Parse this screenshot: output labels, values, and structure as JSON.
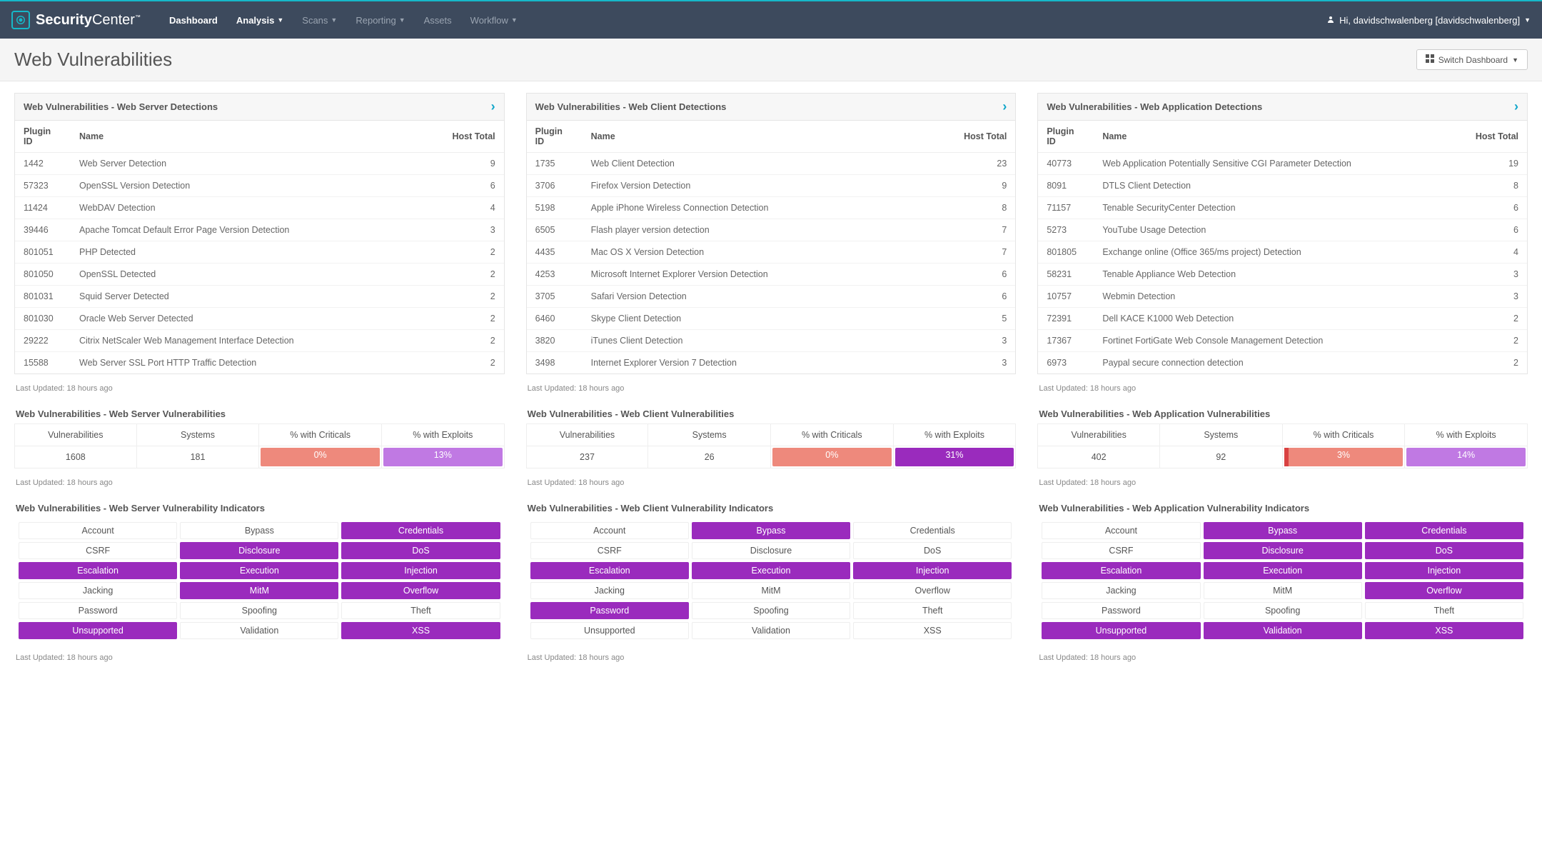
{
  "brand": {
    "text1": "Security",
    "text2": "Center"
  },
  "nav": {
    "dashboard": "Dashboard",
    "analysis": "Analysis",
    "scans": "Scans",
    "reporting": "Reporting",
    "assets": "Assets",
    "workflow": "Workflow"
  },
  "user": {
    "greet": "Hi, davidschwalenberg [davidschwalenberg]"
  },
  "page": {
    "title": "Web Vulnerabilities",
    "switch": "Switch Dashboard"
  },
  "headers": {
    "plugin": "Plugin ID",
    "name": "Name",
    "host": "Host Total",
    "vuln": "Vulnerabilities",
    "sys": "Systems",
    "crit": "% with Criticals",
    "exp": "% with Exploits"
  },
  "updated": "Last Updated: 18 hours ago",
  "colors": {
    "purple": "#9a2bbd",
    "salmon": "#ee897c",
    "salmon_alt": "#e97c72",
    "violet": "#c079e3"
  },
  "columns": [
    {
      "det_title": "Web Vulnerabilities - Web Server Detections",
      "det_rows": [
        {
          "id": "1442",
          "name": "Web Server Detection",
          "total": "9"
        },
        {
          "id": "57323",
          "name": "OpenSSL Version Detection",
          "total": "6"
        },
        {
          "id": "11424",
          "name": "WebDAV Detection",
          "total": "4"
        },
        {
          "id": "39446",
          "name": "Apache Tomcat Default Error Page Version Detection",
          "total": "3"
        },
        {
          "id": "801051",
          "name": "PHP Detected",
          "total": "2"
        },
        {
          "id": "801050",
          "name": "OpenSSL Detected",
          "total": "2"
        },
        {
          "id": "801031",
          "name": "Squid Server Detected",
          "total": "2"
        },
        {
          "id": "801030",
          "name": "Oracle Web Server Detected",
          "total": "2"
        },
        {
          "id": "29222",
          "name": "Citrix NetScaler Web Management Interface Detection",
          "total": "2"
        },
        {
          "id": "15588",
          "name": "Web Server SSL Port HTTP Traffic Detection",
          "total": "2"
        }
      ],
      "vuln_title": "Web Vulnerabilities - Web Server Vulnerabilities",
      "vuln": {
        "vulns": "1608",
        "sys": "181",
        "crit": "0%",
        "crit_color": "#ee897c",
        "crit_w": 100,
        "exp": "13%",
        "exp_color": "#c079e3",
        "exp_w": 100
      },
      "ind_title": "Web Vulnerabilities - Web Server Vulnerability Indicators",
      "indicators": [
        {
          "l": "Account",
          "on": 0
        },
        {
          "l": "Bypass",
          "on": 0
        },
        {
          "l": "Credentials",
          "on": 1
        },
        {
          "l": "CSRF",
          "on": 0
        },
        {
          "l": "Disclosure",
          "on": 1
        },
        {
          "l": "DoS",
          "on": 1
        },
        {
          "l": "Escalation",
          "on": 1
        },
        {
          "l": "Execution",
          "on": 1
        },
        {
          "l": "Injection",
          "on": 1
        },
        {
          "l": "Jacking",
          "on": 0
        },
        {
          "l": "MitM",
          "on": 1
        },
        {
          "l": "Overflow",
          "on": 1
        },
        {
          "l": "Password",
          "on": 0
        },
        {
          "l": "Spoofing",
          "on": 0
        },
        {
          "l": "Theft",
          "on": 0
        },
        {
          "l": "Unsupported",
          "on": 1
        },
        {
          "l": "Validation",
          "on": 0
        },
        {
          "l": "XSS",
          "on": 1
        }
      ]
    },
    {
      "det_title": "Web Vulnerabilities - Web Client Detections",
      "det_rows": [
        {
          "id": "1735",
          "name": "Web Client Detection",
          "total": "23"
        },
        {
          "id": "3706",
          "name": "Firefox Version Detection",
          "total": "9"
        },
        {
          "id": "5198",
          "name": "Apple iPhone Wireless Connection Detection",
          "total": "8"
        },
        {
          "id": "6505",
          "name": "Flash player version detection",
          "total": "7"
        },
        {
          "id": "4435",
          "name": "Mac OS X Version Detection",
          "total": "7"
        },
        {
          "id": "4253",
          "name": "Microsoft Internet Explorer Version Detection",
          "total": "6"
        },
        {
          "id": "3705",
          "name": "Safari Version Detection",
          "total": "6"
        },
        {
          "id": "6460",
          "name": "Skype Client Detection",
          "total": "5"
        },
        {
          "id": "3820",
          "name": "iTunes Client Detection",
          "total": "3"
        },
        {
          "id": "3498",
          "name": "Internet Explorer Version 7 Detection",
          "total": "3"
        }
      ],
      "vuln_title": "Web Vulnerabilities - Web Client Vulnerabilities",
      "vuln": {
        "vulns": "237",
        "sys": "26",
        "crit": "0%",
        "crit_color": "#ee897c",
        "crit_w": 100,
        "exp": "31%",
        "exp_color": "#9a2bbd",
        "exp_w": 100
      },
      "ind_title": "Web Vulnerabilities - Web Client Vulnerability Indicators",
      "indicators": [
        {
          "l": "Account",
          "on": 0
        },
        {
          "l": "Bypass",
          "on": 1
        },
        {
          "l": "Credentials",
          "on": 0
        },
        {
          "l": "CSRF",
          "on": 0
        },
        {
          "l": "Disclosure",
          "on": 0
        },
        {
          "l": "DoS",
          "on": 0
        },
        {
          "l": "Escalation",
          "on": 1
        },
        {
          "l": "Execution",
          "on": 1
        },
        {
          "l": "Injection",
          "on": 1
        },
        {
          "l": "Jacking",
          "on": 0
        },
        {
          "l": "MitM",
          "on": 0
        },
        {
          "l": "Overflow",
          "on": 0
        },
        {
          "l": "Password",
          "on": 1
        },
        {
          "l": "Spoofing",
          "on": 0
        },
        {
          "l": "Theft",
          "on": 0
        },
        {
          "l": "Unsupported",
          "on": 0
        },
        {
          "l": "Validation",
          "on": 0
        },
        {
          "l": "XSS",
          "on": 0
        }
      ]
    },
    {
      "det_title": "Web Vulnerabilities - Web Application Detections",
      "det_rows": [
        {
          "id": "40773",
          "name": "Web Application Potentially Sensitive CGI Parameter Detection",
          "total": "19"
        },
        {
          "id": "8091",
          "name": "DTLS Client Detection",
          "total": "8"
        },
        {
          "id": "71157",
          "name": "Tenable SecurityCenter Detection",
          "total": "6"
        },
        {
          "id": "5273",
          "name": "YouTube Usage Detection",
          "total": "6"
        },
        {
          "id": "801805",
          "name": "Exchange online (Office 365/ms project) Detection",
          "total": "4"
        },
        {
          "id": "58231",
          "name": "Tenable Appliance Web Detection",
          "total": "3"
        },
        {
          "id": "10757",
          "name": "Webmin Detection",
          "total": "3"
        },
        {
          "id": "72391",
          "name": "Dell KACE K1000 Web Detection",
          "total": "2"
        },
        {
          "id": "17367",
          "name": "Fortinet FortiGate Web Console Management Detection",
          "total": "2"
        },
        {
          "id": "6973",
          "name": "Paypal secure connection detection",
          "total": "2"
        }
      ],
      "vuln_title": "Web Vulnerabilities - Web Application Vulnerabilities",
      "vuln": {
        "vulns": "402",
        "sys": "92",
        "crit": "3%",
        "crit_color": "#ee897c",
        "crit_w": 100,
        "exp": "14%",
        "exp_color": "#c079e3",
        "exp_w": 100,
        "crit_accent": "#d94242",
        "crit_accent_w": 4
      },
      "ind_title": "Web Vulnerabilities - Web Application Vulnerability Indicators",
      "indicators": [
        {
          "l": "Account",
          "on": 0
        },
        {
          "l": "Bypass",
          "on": 1
        },
        {
          "l": "Credentials",
          "on": 1
        },
        {
          "l": "CSRF",
          "on": 0
        },
        {
          "l": "Disclosure",
          "on": 1
        },
        {
          "l": "DoS",
          "on": 1
        },
        {
          "l": "Escalation",
          "on": 1
        },
        {
          "l": "Execution",
          "on": 1
        },
        {
          "l": "Injection",
          "on": 1
        },
        {
          "l": "Jacking",
          "on": 0
        },
        {
          "l": "MitM",
          "on": 0
        },
        {
          "l": "Overflow",
          "on": 1
        },
        {
          "l": "Password",
          "on": 0
        },
        {
          "l": "Spoofing",
          "on": 0
        },
        {
          "l": "Theft",
          "on": 0
        },
        {
          "l": "Unsupported",
          "on": 1
        },
        {
          "l": "Validation",
          "on": 1
        },
        {
          "l": "XSS",
          "on": 1
        }
      ]
    }
  ]
}
